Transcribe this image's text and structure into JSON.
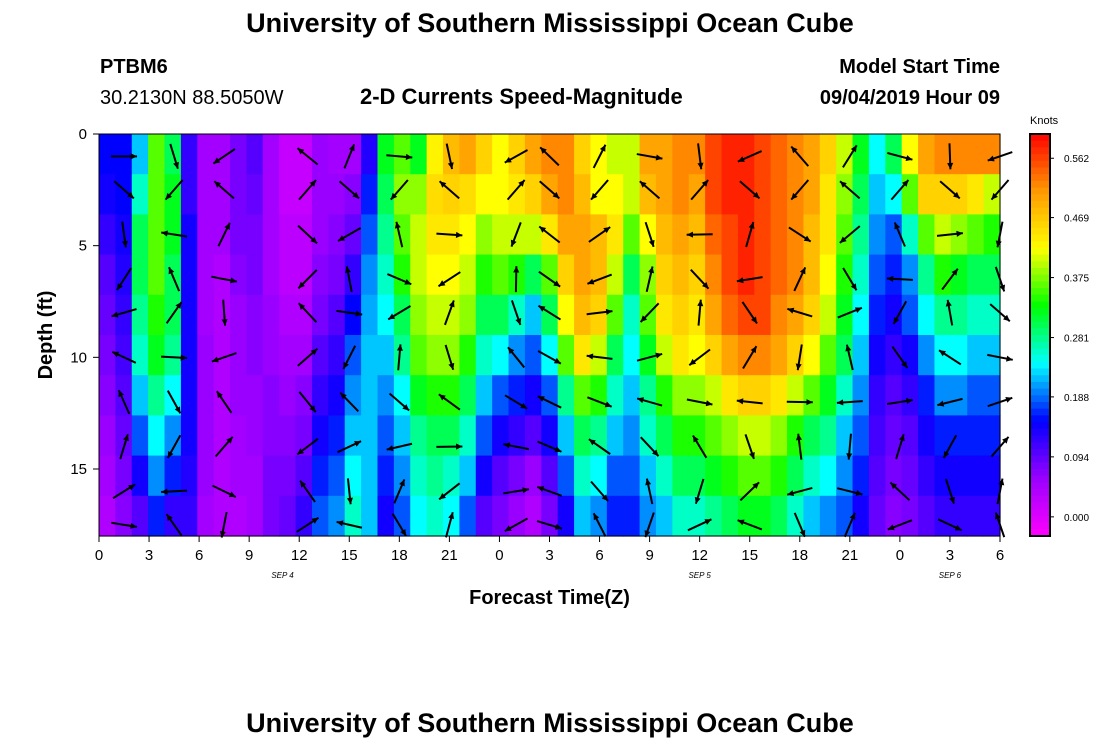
{
  "page": {
    "title_top": "University of Southern Mississippi Ocean Cube",
    "title_bottom": "University of Southern Mississippi Ocean Cube",
    "station": "PTBM6",
    "location": "30.2130N 88.5050W",
    "subtitle": "2-D Currents Speed-Magnitude",
    "model_start_label": "Model Start Time",
    "model_start_value": "09/04/2019 Hour 09"
  },
  "colors": {
    "arrow": "#000000",
    "scale": [
      "#ff00ff",
      "#9900ff",
      "#0000ff",
      "#00ffff",
      "#00ff00",
      "#ffff00",
      "#ff9900",
      "#ff0000"
    ]
  },
  "chart_data": {
    "type": "heatmap",
    "title": "2-D Currents Speed-Magnitude",
    "xlabel": "Forecast Time(Z)",
    "ylabel": "Depth (ft)",
    "x_ticks": [
      "0",
      "3",
      "6",
      "9",
      "12",
      "15",
      "18",
      "21",
      "0",
      "3",
      "6",
      "9",
      "12",
      "15",
      "18",
      "21",
      "0",
      "3",
      "6"
    ],
    "x_range_hours": [
      0,
      54
    ],
    "date_labels": [
      {
        "label": "SEP 4",
        "hour": 11
      },
      {
        "label": "SEP 5",
        "hour": 36
      },
      {
        "label": "SEP 6",
        "hour": 51
      }
    ],
    "y_ticks": [
      0,
      5,
      10,
      15
    ],
    "ylim": [
      0,
      18
    ],
    "colorbar": {
      "units": "Knots",
      "ticks": [
        "0.562",
        "0.469",
        "0.375",
        "0.281",
        "0.188",
        "0.094",
        "0.000"
      ],
      "tick_values": [
        0.562,
        0.469,
        0.375,
        0.281,
        0.188,
        0.094,
        0.0
      ],
      "range": [
        -0.03,
        0.6
      ]
    },
    "depths_ft": [
      1,
      2.5,
      4.5,
      6.5,
      8,
      10,
      12,
      14,
      16,
      17.5
    ],
    "arrow_hours": [
      1.5,
      4.5,
      7.5,
      12.5,
      15,
      18,
      21,
      25,
      27,
      30,
      33,
      36,
      39,
      42,
      45,
      48,
      51,
      54
    ],
    "speed_grid_knots": [
      [
        0.15,
        0.15,
        0.22,
        0.36,
        0.3,
        0.12,
        0.05,
        0.05,
        0.08,
        0.1,
        0.05,
        0.02,
        0.02,
        0.06,
        0.05,
        0.05,
        0.13,
        0.32,
        0.36,
        0.32,
        0.43,
        0.48,
        0.5,
        0.46,
        0.42,
        0.46,
        0.5,
        0.52,
        0.52,
        0.46,
        0.42,
        0.4,
        0.4,
        0.5,
        0.5,
        0.52,
        0.52,
        0.56,
        0.58,
        0.58,
        0.56,
        0.54,
        0.52,
        0.5,
        0.46,
        0.4,
        0.32,
        0.24,
        0.3,
        0.42,
        0.5,
        0.52,
        0.52,
        0.52,
        0.52
      ],
      [
        0.14,
        0.15,
        0.26,
        0.36,
        0.32,
        0.12,
        0.05,
        0.05,
        0.08,
        0.09,
        0.05,
        0.02,
        0.02,
        0.06,
        0.06,
        0.07,
        0.16,
        0.3,
        0.38,
        0.38,
        0.45,
        0.46,
        0.45,
        0.42,
        0.42,
        0.44,
        0.46,
        0.5,
        0.52,
        0.48,
        0.42,
        0.42,
        0.4,
        0.48,
        0.5,
        0.52,
        0.5,
        0.56,
        0.58,
        0.58,
        0.56,
        0.54,
        0.52,
        0.5,
        0.44,
        0.38,
        0.3,
        0.22,
        0.24,
        0.36,
        0.46,
        0.46,
        0.46,
        0.44,
        0.4
      ],
      [
        0.12,
        0.14,
        0.3,
        0.36,
        0.32,
        0.14,
        0.05,
        0.05,
        0.08,
        0.08,
        0.05,
        0.03,
        0.03,
        0.06,
        0.07,
        0.09,
        0.18,
        0.28,
        0.36,
        0.4,
        0.44,
        0.44,
        0.42,
        0.38,
        0.4,
        0.4,
        0.4,
        0.44,
        0.5,
        0.5,
        0.48,
        0.44,
        0.36,
        0.42,
        0.48,
        0.5,
        0.48,
        0.54,
        0.56,
        0.58,
        0.56,
        0.54,
        0.52,
        0.48,
        0.44,
        0.36,
        0.28,
        0.2,
        0.18,
        0.26,
        0.36,
        0.4,
        0.38,
        0.36,
        0.34
      ],
      [
        0.1,
        0.13,
        0.3,
        0.36,
        0.3,
        0.14,
        0.05,
        0.04,
        0.07,
        0.08,
        0.05,
        0.03,
        0.03,
        0.07,
        0.08,
        0.12,
        0.2,
        0.26,
        0.34,
        0.4,
        0.42,
        0.42,
        0.4,
        0.34,
        0.36,
        0.34,
        0.3,
        0.36,
        0.46,
        0.5,
        0.48,
        0.4,
        0.3,
        0.38,
        0.46,
        0.48,
        0.46,
        0.52,
        0.56,
        0.58,
        0.56,
        0.54,
        0.52,
        0.48,
        0.42,
        0.34,
        0.26,
        0.18,
        0.16,
        0.2,
        0.28,
        0.34,
        0.32,
        0.3,
        0.3
      ],
      [
        0.09,
        0.12,
        0.28,
        0.34,
        0.3,
        0.14,
        0.05,
        0.04,
        0.06,
        0.07,
        0.06,
        0.04,
        0.04,
        0.08,
        0.1,
        0.15,
        0.21,
        0.24,
        0.3,
        0.38,
        0.4,
        0.4,
        0.38,
        0.3,
        0.3,
        0.26,
        0.22,
        0.3,
        0.42,
        0.48,
        0.46,
        0.36,
        0.26,
        0.36,
        0.44,
        0.46,
        0.44,
        0.5,
        0.54,
        0.56,
        0.56,
        0.52,
        0.5,
        0.46,
        0.4,
        0.32,
        0.24,
        0.16,
        0.14,
        0.18,
        0.24,
        0.28,
        0.28,
        0.26,
        0.26
      ],
      [
        0.08,
        0.11,
        0.26,
        0.32,
        0.28,
        0.14,
        0.06,
        0.04,
        0.06,
        0.07,
        0.06,
        0.05,
        0.05,
        0.1,
        0.12,
        0.18,
        0.22,
        0.22,
        0.28,
        0.36,
        0.38,
        0.38,
        0.34,
        0.26,
        0.24,
        0.2,
        0.18,
        0.24,
        0.36,
        0.44,
        0.4,
        0.3,
        0.24,
        0.32,
        0.4,
        0.44,
        0.42,
        0.46,
        0.5,
        0.52,
        0.52,
        0.5,
        0.46,
        0.42,
        0.36,
        0.3,
        0.22,
        0.14,
        0.12,
        0.14,
        0.2,
        0.24,
        0.24,
        0.22,
        0.22
      ],
      [
        0.07,
        0.1,
        0.22,
        0.28,
        0.24,
        0.14,
        0.06,
        0.04,
        0.06,
        0.06,
        0.07,
        0.06,
        0.07,
        0.12,
        0.14,
        0.2,
        0.22,
        0.2,
        0.24,
        0.32,
        0.34,
        0.34,
        0.3,
        0.22,
        0.18,
        0.16,
        0.14,
        0.18,
        0.28,
        0.36,
        0.34,
        0.26,
        0.22,
        0.28,
        0.34,
        0.38,
        0.38,
        0.4,
        0.44,
        0.46,
        0.46,
        0.44,
        0.4,
        0.36,
        0.32,
        0.26,
        0.2,
        0.12,
        0.1,
        0.12,
        0.16,
        0.2,
        0.2,
        0.18,
        0.18
      ],
      [
        0.06,
        0.09,
        0.18,
        0.24,
        0.2,
        0.14,
        0.06,
        0.04,
        0.05,
        0.06,
        0.07,
        0.07,
        0.08,
        0.14,
        0.16,
        0.22,
        0.22,
        0.18,
        0.22,
        0.28,
        0.3,
        0.3,
        0.26,
        0.18,
        0.14,
        0.12,
        0.1,
        0.14,
        0.22,
        0.3,
        0.28,
        0.22,
        0.2,
        0.26,
        0.3,
        0.34,
        0.34,
        0.36,
        0.38,
        0.4,
        0.4,
        0.38,
        0.34,
        0.3,
        0.28,
        0.22,
        0.18,
        0.11,
        0.09,
        0.1,
        0.14,
        0.16,
        0.16,
        0.16,
        0.16
      ],
      [
        0.05,
        0.08,
        0.14,
        0.2,
        0.16,
        0.13,
        0.06,
        0.04,
        0.05,
        0.05,
        0.08,
        0.08,
        0.1,
        0.16,
        0.18,
        0.24,
        0.22,
        0.16,
        0.2,
        0.26,
        0.28,
        0.26,
        0.22,
        0.14,
        0.1,
        0.08,
        0.06,
        0.1,
        0.18,
        0.26,
        0.24,
        0.18,
        0.18,
        0.22,
        0.26,
        0.3,
        0.3,
        0.32,
        0.34,
        0.36,
        0.36,
        0.34,
        0.3,
        0.26,
        0.24,
        0.2,
        0.16,
        0.1,
        0.08,
        0.09,
        0.12,
        0.14,
        0.14,
        0.14,
        0.14
      ],
      [
        0.04,
        0.07,
        0.1,
        0.16,
        0.12,
        0.12,
        0.05,
        0.04,
        0.04,
        0.05,
        0.08,
        0.09,
        0.12,
        0.18,
        0.2,
        0.26,
        0.22,
        0.14,
        0.18,
        0.24,
        0.26,
        0.24,
        0.18,
        0.1,
        0.08,
        0.06,
        0.04,
        0.08,
        0.14,
        0.22,
        0.2,
        0.16,
        0.16,
        0.2,
        0.22,
        0.26,
        0.26,
        0.28,
        0.3,
        0.32,
        0.32,
        0.3,
        0.26,
        0.22,
        0.2,
        0.18,
        0.14,
        0.09,
        0.07,
        0.08,
        0.1,
        0.12,
        0.12,
        0.12,
        0.12
      ]
    ]
  }
}
